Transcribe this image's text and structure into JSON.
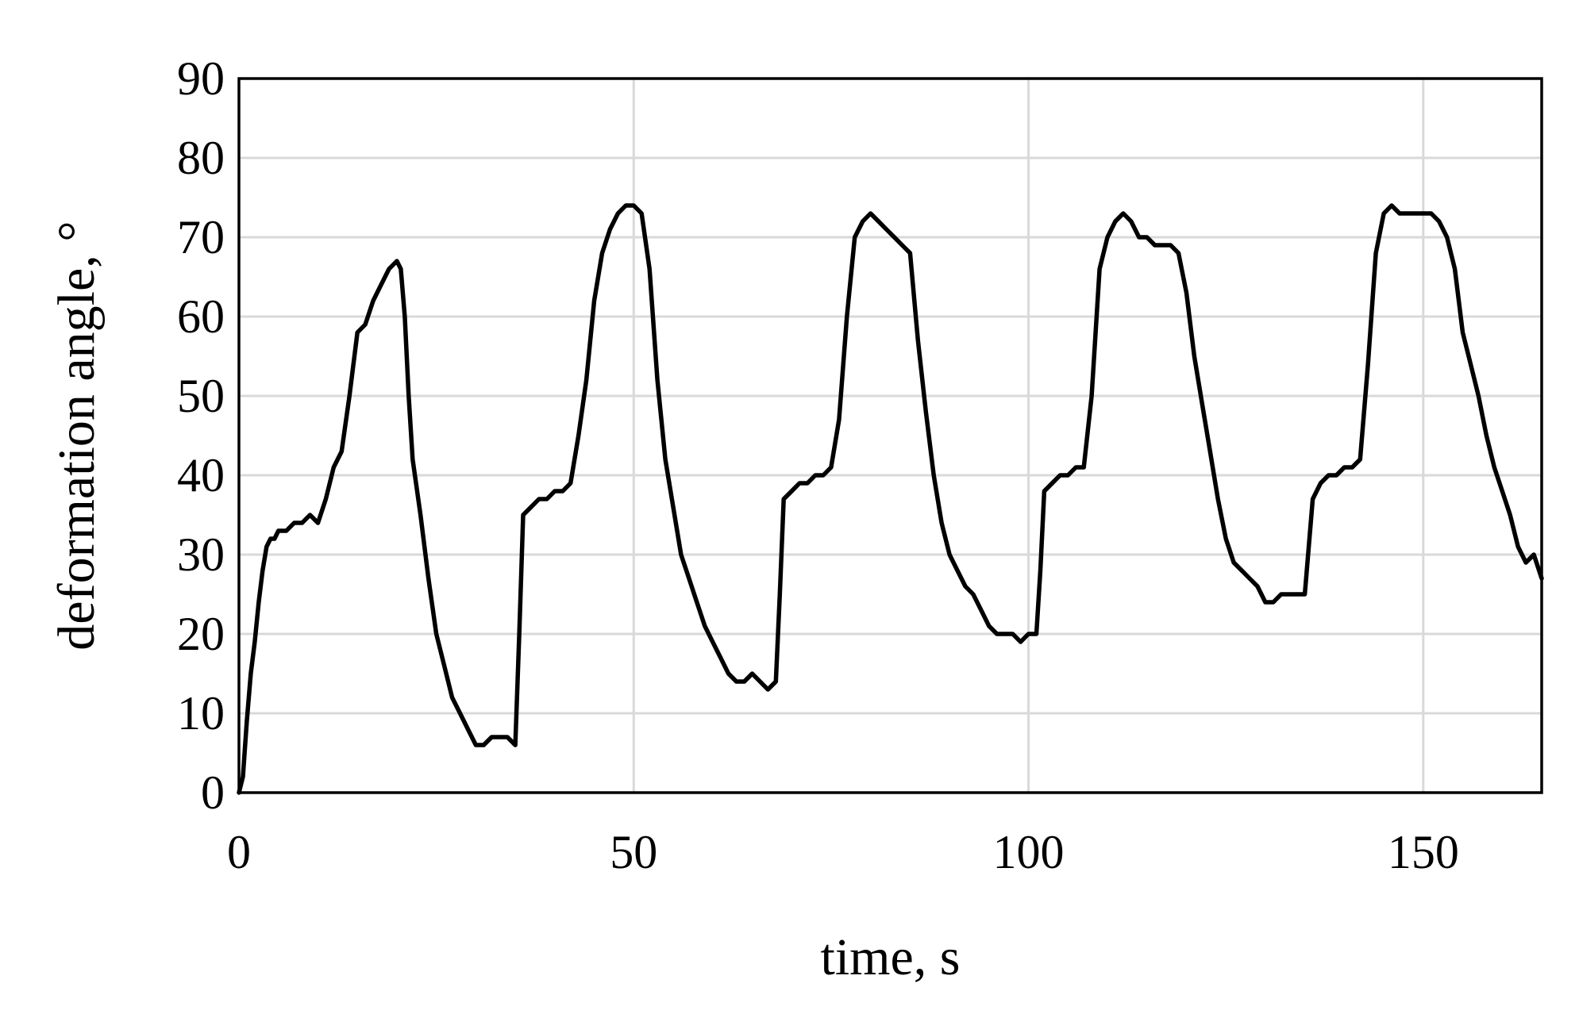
{
  "chart_data": {
    "type": "line",
    "title": "",
    "xlabel": "time, s",
    "ylabel": "deformation angle, °",
    "xlim": [
      0,
      165
    ],
    "ylim": [
      0,
      90
    ],
    "x_ticks": [
      0,
      50,
      100,
      150
    ],
    "y_ticks": [
      0,
      10,
      20,
      30,
      40,
      50,
      60,
      70,
      80,
      90
    ],
    "grid": true,
    "legend": "none",
    "series_color": "#000000",
    "series": [
      {
        "x": [
          0,
          0.5,
          1,
          1.5,
          2,
          2.5,
          3,
          3.5,
          4,
          4.5,
          5,
          6,
          7,
          8,
          9,
          10,
          11,
          12,
          13,
          14,
          15,
          16,
          17,
          18,
          19,
          20,
          20.5,
          21,
          21.5,
          22,
          23,
          24,
          25,
          26,
          27,
          28,
          29,
          30,
          31,
          32,
          33,
          34,
          35,
          35.5,
          36,
          37,
          38,
          39,
          40,
          41,
          42,
          43,
          44,
          45,
          46,
          47,
          48,
          49,
          50,
          51,
          52,
          53,
          54,
          55,
          56,
          57,
          58,
          59,
          60,
          61,
          62,
          63,
          64,
          65,
          66,
          67,
          68,
          68.5,
          69,
          70,
          71,
          72,
          73,
          74,
          75,
          76,
          77,
          78,
          79,
          80,
          81,
          82,
          83,
          84,
          85,
          86,
          87,
          88,
          89,
          90,
          91,
          92,
          93,
          94,
          95,
          96,
          97,
          98,
          99,
          100,
          101,
          101.5,
          102,
          103,
          104,
          105,
          106,
          107,
          108,
          109,
          110,
          111,
          112,
          113,
          114,
          115,
          116,
          117,
          118,
          119,
          120,
          121,
          122,
          123,
          124,
          125,
          126,
          127,
          128,
          129,
          130,
          131,
          132,
          133,
          134,
          135,
          136,
          137,
          138,
          139,
          140,
          141,
          142,
          143,
          144,
          145,
          146,
          147,
          148,
          149,
          150,
          151,
          152,
          153,
          154,
          155,
          156,
          157,
          158,
          159,
          160,
          161,
          162,
          163,
          164,
          165
        ],
        "y": [
          0,
          2,
          9,
          15,
          19,
          24,
          28,
          31,
          32,
          32,
          33,
          33,
          34,
          34,
          35,
          34,
          37,
          41,
          43,
          50,
          58,
          59,
          62,
          64,
          66,
          67,
          66,
          60,
          50,
          42,
          35,
          27,
          20,
          16,
          12,
          10,
          8,
          6,
          6,
          7,
          7,
          7,
          6,
          20,
          35,
          36,
          37,
          37,
          38,
          38,
          39,
          45,
          52,
          62,
          68,
          71,
          73,
          74,
          74,
          73,
          66,
          52,
          42,
          36,
          30,
          27,
          24,
          21,
          19,
          17,
          15,
          14,
          14,
          15,
          14,
          13,
          14,
          25,
          37,
          38,
          39,
          39,
          40,
          40,
          41,
          47,
          60,
          70,
          72,
          73,
          72,
          71,
          70,
          69,
          68,
          57,
          48,
          40,
          34,
          30,
          28,
          26,
          25,
          23,
          21,
          20,
          20,
          20,
          19,
          20,
          20,
          28,
          38,
          39,
          40,
          40,
          41,
          41,
          50,
          66,
          70,
          72,
          73,
          72,
          70,
          70,
          69,
          69,
          69,
          68,
          63,
          55,
          49,
          43,
          37,
          32,
          29,
          28,
          27,
          26,
          24,
          24,
          25,
          25,
          25,
          25,
          37,
          39,
          40,
          40,
          41,
          41,
          42,
          54,
          68,
          73,
          74,
          73,
          73,
          73,
          73,
          73,
          72,
          70,
          66,
          58,
          54,
          50,
          45,
          41,
          38,
          35,
          31,
          29,
          30,
          27
        ]
      }
    ]
  }
}
